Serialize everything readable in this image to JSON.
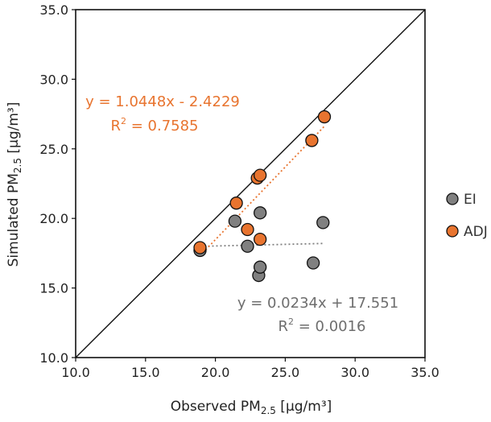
{
  "chart_data": {
    "type": "scatter",
    "title": "",
    "xlabel": {
      "main": "Observed PM",
      "sub": "2.5",
      "unit": " [μg/m³]"
    },
    "ylabel": {
      "main": "Simulated PM",
      "sub": "2.5",
      "unit": " [μg/m³]"
    },
    "xlim": [
      10.0,
      35.0
    ],
    "ylim": [
      10.0,
      35.0
    ],
    "xticks": [
      "10.0",
      "15.0",
      "20.0",
      "25.0",
      "30.0",
      "35.0"
    ],
    "yticks": [
      "10.0",
      "15.0",
      "20.0",
      "25.0",
      "30.0",
      "35.0"
    ],
    "grid": false,
    "one_to_one_line": true,
    "legend_position": "right",
    "series": [
      {
        "name": "EI",
        "color": "#808080",
        "x": [
          18.9,
          21.4,
          22.3,
          23.1,
          23.2,
          23.2,
          27.0,
          27.7
        ],
        "y": [
          17.7,
          19.8,
          18.0,
          15.9,
          20.4,
          16.5,
          16.8,
          19.7
        ],
        "trendline": {
          "slope": 0.0234,
          "intercept": 17.551,
          "x_range": [
            18.9,
            27.7
          ]
        },
        "equation": "y = 0.0234x + 17.551",
        "r2_label": "R",
        "r2_value": " = 0.0016"
      },
      {
        "name": "ADJ",
        "color": "#e8742f",
        "x": [
          18.9,
          21.5,
          22.3,
          23.0,
          23.2,
          23.2,
          26.9,
          27.8
        ],
        "y": [
          17.9,
          21.1,
          19.2,
          22.9,
          23.1,
          18.5,
          25.6,
          27.3
        ],
        "trendline": {
          "slope": 1.0448,
          "intercept": -2.4229,
          "x_range": [
            18.9,
            27.8
          ]
        },
        "equation": "y = 1.0448x - 2.4229",
        "r2_label": "R",
        "r2_value": " = 0.7585"
      }
    ]
  }
}
